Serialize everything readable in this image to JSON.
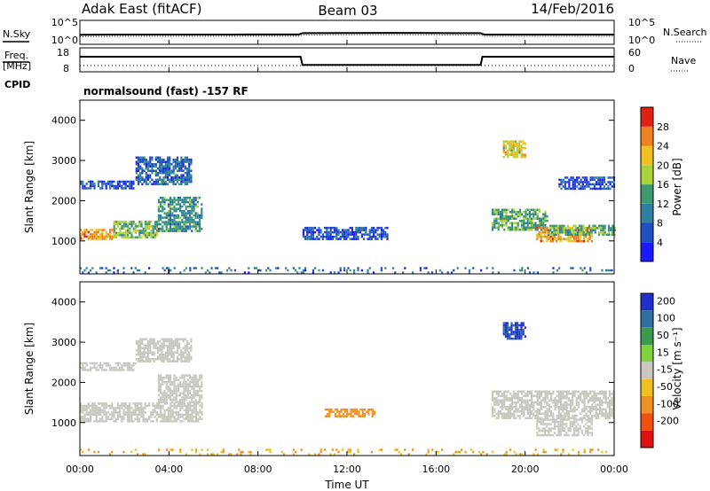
{
  "header": {
    "station": "Adak East (fitACF)",
    "beam": "Beam 03",
    "date": "14/Feb/2016"
  },
  "noise_panel": {
    "left_label": "N.Sky",
    "right_label": "N.Search",
    "ticks_left": [
      "10^5",
      "10^0"
    ],
    "ticks_right": [
      "10^5",
      "10^0"
    ]
  },
  "freq_panel": {
    "left_label_1": "Freq.",
    "left_label_2": "[MHz]",
    "right_label": "Nave",
    "ticks_left": [
      "18",
      "8"
    ],
    "ticks_right": [
      "60",
      "0"
    ]
  },
  "cpid": {
    "label": "CPID",
    "text": "normalsound (fast) -157 RF"
  },
  "time_axis": {
    "label": "Time UT",
    "ticks": [
      "00:00",
      "04:00",
      "08:00",
      "12:00",
      "16:00",
      "20:00",
      "00:00"
    ]
  },
  "range_axis": {
    "label": "Slant Range [km]",
    "ticks": [
      "1000",
      "2000",
      "3000",
      "4000"
    ]
  },
  "power_colorbar": {
    "label": "Power [dB]",
    "ticks": [
      "4",
      "8",
      "12",
      "16",
      "20",
      "24",
      "28"
    ],
    "colors": [
      "#1a1aff",
      "#1f4fc0",
      "#2f7fa0",
      "#3c9a6e",
      "#a8d43a",
      "#f0c020",
      "#f08020",
      "#e02010"
    ]
  },
  "velocity_colorbar": {
    "label": "Velocity [m s⁻¹]",
    "ticks": [
      "200",
      "100",
      "50",
      "15",
      "-15",
      "-50",
      "-100",
      "-200"
    ],
    "colors": [
      "#2030c8",
      "#2f6fa0",
      "#3c9a50",
      "#80d040",
      "#c8c8c0",
      "#f0c020",
      "#f09020",
      "#f05010",
      "#e01010"
    ]
  },
  "chart_data": [
    {
      "type": "line",
      "title": "Adak East (fitACF)",
      "xlabel": "",
      "ylabel": "N.Sky",
      "xlim": [
        "00:00",
        "24:00"
      ],
      "y_scale": "log",
      "series": [
        {
          "name": "N.Sky",
          "x": [
            "00:00",
            "02:00",
            "04:00",
            "06:00",
            "08:00",
            "09:50",
            "10:00",
            "12:00",
            "14:00",
            "16:00",
            "18:00",
            "18:10",
            "20:00",
            "22:00",
            "24:00"
          ],
          "values": [
            80,
            90,
            90,
            90,
            95,
            95,
            200,
            220,
            230,
            210,
            200,
            90,
            90,
            90,
            90
          ]
        }
      ]
    },
    {
      "type": "line",
      "ylabel": "Freq. [MHz]",
      "xlim": [
        "00:00",
        "24:00"
      ],
      "ylim": [
        8,
        18
      ],
      "series": [
        {
          "name": "Freq.",
          "x": [
            "00:00",
            "09:55",
            "10:00",
            "18:00",
            "18:05",
            "24:00"
          ],
          "values": [
            14.5,
            14.5,
            10.5,
            10.5,
            14.5,
            14.5
          ]
        }
      ]
    },
    {
      "type": "heatmap",
      "title": "",
      "ylabel": "Slant Range [km]",
      "colorbar_label": "Power [dB]",
      "colorbar_range": [
        0,
        32
      ],
      "ylim": [
        180,
        4500
      ],
      "xlim": [
        "00:00",
        "24:00"
      ],
      "regions": [
        {
          "t": [
            0.0,
            1.5
          ],
          "range": [
            1050,
            1300
          ],
          "value": 24
        },
        {
          "t": [
            1.5,
            3.5
          ],
          "range": [
            1100,
            1500
          ],
          "value": 16
        },
        {
          "t": [
            3.5,
            5.5
          ],
          "range": [
            1250,
            2100
          ],
          "value": 12
        },
        {
          "t": [
            0.0,
            2.5
          ],
          "range": [
            2300,
            2500
          ],
          "value": 6
        },
        {
          "t": [
            2.5,
            5.0
          ],
          "range": [
            2400,
            3100
          ],
          "value": 8
        },
        {
          "t": [
            10.0,
            13.8
          ],
          "range": [
            1050,
            1350
          ],
          "value": 6
        },
        {
          "t": [
            19.0,
            20.0
          ],
          "range": [
            3100,
            3500
          ],
          "value": 20
        },
        {
          "t": [
            18.5,
            21.0
          ],
          "range": [
            1300,
            1800
          ],
          "value": 14
        },
        {
          "t": [
            20.5,
            23.0
          ],
          "range": [
            1000,
            1350
          ],
          "value": 24
        },
        {
          "t": [
            21.0,
            24.0
          ],
          "range": [
            1150,
            1400
          ],
          "value": 14
        },
        {
          "t": [
            21.5,
            24.0
          ],
          "range": [
            2300,
            2600
          ],
          "value": 6
        },
        {
          "t": [
            0.0,
            24.0
          ],
          "range": [
            200,
            350
          ],
          "value": 8
        }
      ]
    },
    {
      "type": "heatmap",
      "title": "",
      "ylabel": "Slant Range [km]",
      "xlabel": "Time UT",
      "colorbar_label": "Velocity [m s⁻¹]",
      "colorbar_range": [
        -200,
        200
      ],
      "ylim": [
        180,
        4500
      ],
      "xlim": [
        "00:00",
        "24:00"
      ],
      "regions": [
        {
          "t": [
            0.0,
            5.5
          ],
          "range": [
            1050,
            1500
          ],
          "value": 0
        },
        {
          "t": [
            3.5,
            5.5
          ],
          "range": [
            1500,
            2200
          ],
          "value": 0
        },
        {
          "t": [
            0.0,
            2.5
          ],
          "range": [
            2300,
            2500
          ],
          "value": 0
        },
        {
          "t": [
            2.5,
            5.0
          ],
          "range": [
            2500,
            3100
          ],
          "value": 0
        },
        {
          "t": [
            11.0,
            13.2
          ],
          "range": [
            1150,
            1350
          ],
          "value": -60
        },
        {
          "t": [
            19.0,
            20.0
          ],
          "range": [
            3100,
            3500
          ],
          "value": 150
        },
        {
          "t": [
            18.5,
            24.0
          ],
          "range": [
            1100,
            1800
          ],
          "value": 0
        },
        {
          "t": [
            20.5,
            23.0
          ],
          "range": [
            700,
            1100
          ],
          "value": 0
        },
        {
          "t": [
            0.0,
            24.0
          ],
          "range": [
            200,
            350
          ],
          "value": -50
        }
      ]
    }
  ]
}
